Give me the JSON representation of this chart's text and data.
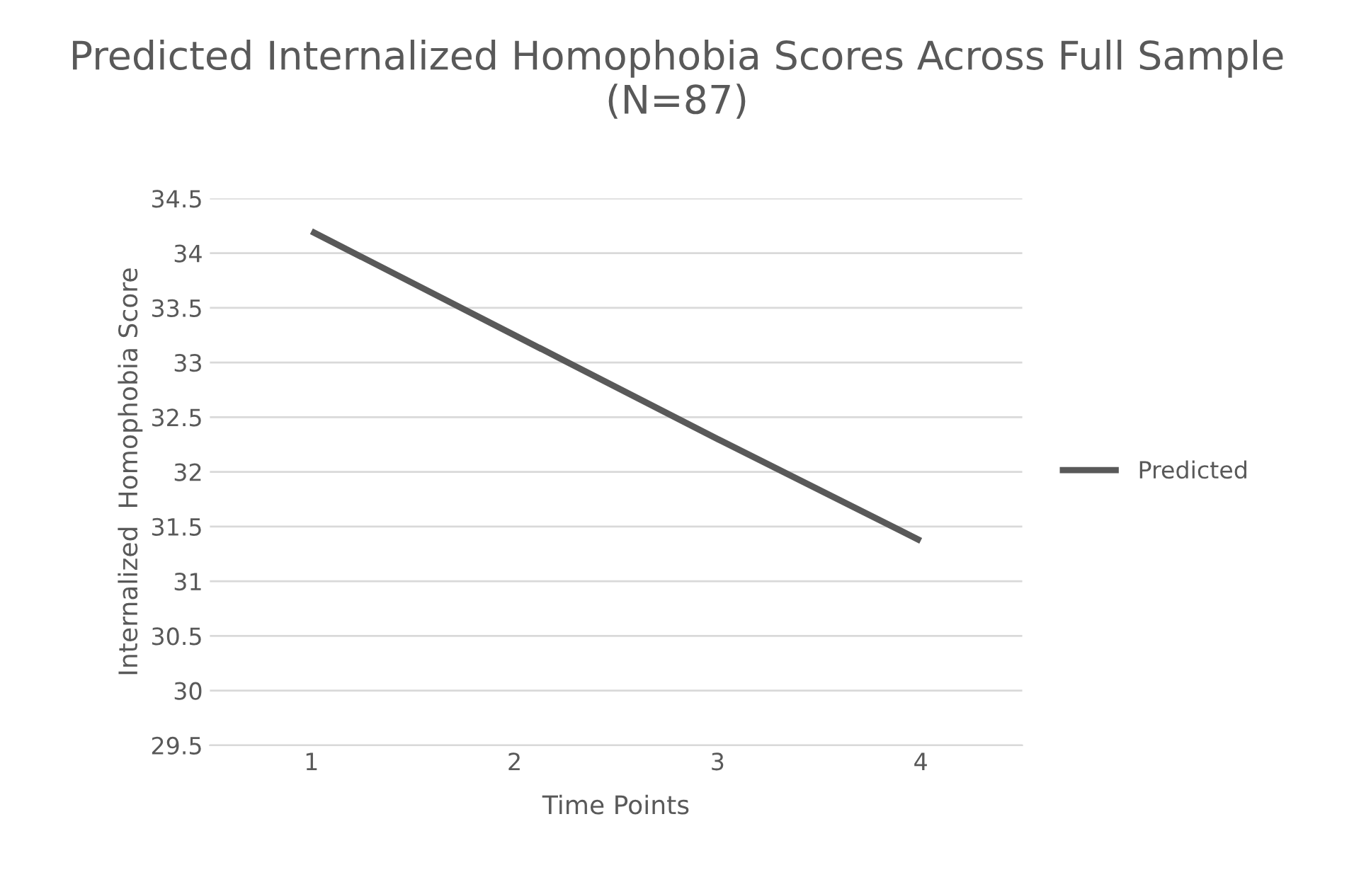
{
  "chart_data": {
    "type": "line",
    "title": "Predicted Internalized Homophobia Scores Across Full Sample (N=87)",
    "xlabel": "Time Points",
    "ylabel": "Internalized  Homophobia Score",
    "categories": [
      "1",
      "2",
      "3",
      "4"
    ],
    "series": [
      {
        "name": "Predicted",
        "color": "#595959",
        "values": [
          34.2,
          33.25,
          32.3,
          31.37
        ]
      }
    ],
    "ylim": [
      29.5,
      34.5
    ],
    "yticks": [
      29.5,
      30,
      30.5,
      31,
      31.5,
      32,
      32.5,
      33,
      33.5,
      34,
      34.5
    ],
    "grid": "y",
    "legend": "right",
    "marker": "none",
    "line_style": "solid"
  }
}
